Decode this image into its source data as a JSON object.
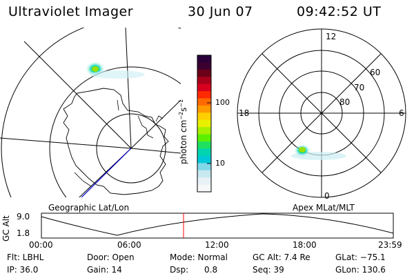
{
  "header": {
    "instrument": "Ultraviolet Imager",
    "date": "30 Jun 07",
    "time": "09:42:52 UT"
  },
  "left_map": {
    "label": "Geographic Lat/Lon"
  },
  "right_map": {
    "label": "Apex MLat/MLT",
    "mlt_labels": [
      "12",
      "18",
      "6",
      "0"
    ],
    "lat_labels": [
      "60",
      "70",
      "80"
    ]
  },
  "colorbar": {
    "unit_label": "photon cm",
    "unit_sup1": "−2",
    "unit_mid": "s",
    "unit_sup2": "−1",
    "ticks": [
      "100",
      "10"
    ],
    "colors": [
      "#2a003a",
      "#3b0030",
      "#6b0018",
      "#a8001a",
      "#d8001e",
      "#ff2a00",
      "#ff6a00",
      "#ff9a00",
      "#ffd000",
      "#e8f000",
      "#a6f000",
      "#5cf000",
      "#20e060",
      "#00d4b0",
      "#00c8d8",
      "#80d8e8",
      "#c8e8f0",
      "#e8f2f6",
      "#f6f8fa"
    ]
  },
  "timeline": {
    "y_label": "GC Alt",
    "y_ticks": [
      "9.0",
      "1.8"
    ],
    "x_ticks": [
      "00:00",
      "06:00",
      "12:00",
      "18:00",
      "23:59"
    ]
  },
  "info": {
    "r1": [
      "Flt: LBHL",
      "Door: Open",
      "Mode: Normal",
      "GC Alt: 7.4 Re",
      "GLat: −75.1"
    ],
    "r2": [
      "IP: 36.0",
      "Gain: 14",
      "Dsp:      0.8",
      "Seq: 39",
      "GLon: 130.6"
    ]
  },
  "colors": {
    "current_time_marker": "#ff0000",
    "track": "#0000cc",
    "aurora": "#30e0a0"
  }
}
